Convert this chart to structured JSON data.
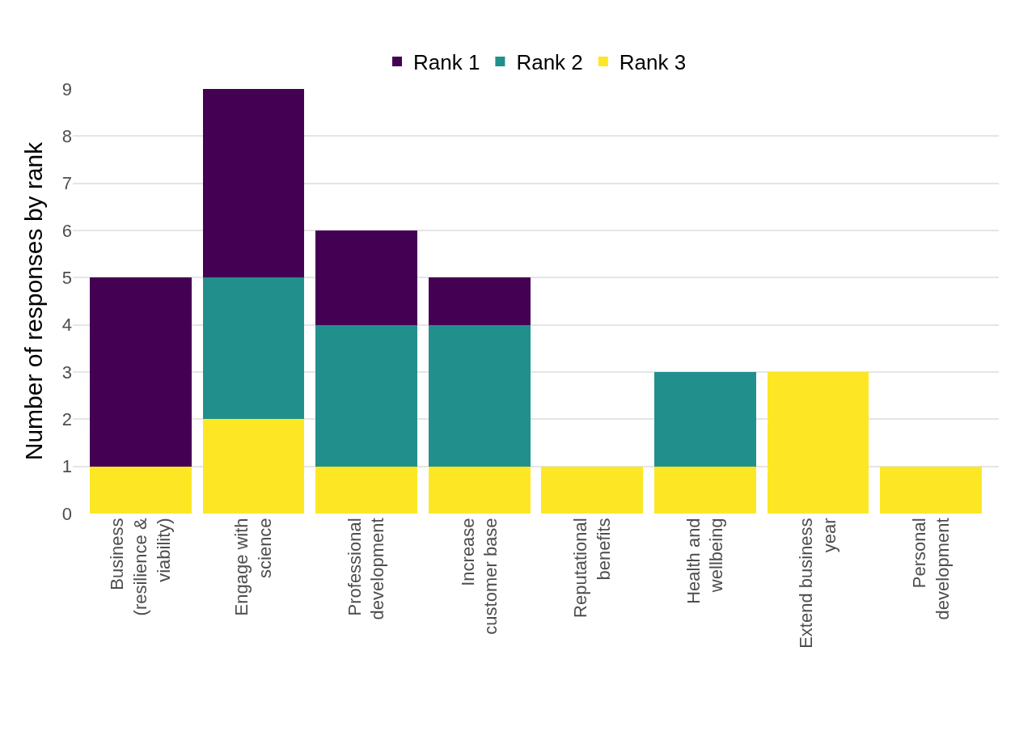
{
  "chart_data": {
    "type": "bar",
    "stacked": true,
    "ylabel": "Number of responses by rank",
    "categories": [
      "Business\n(resilience &\nviability)",
      "Engage with\nscience",
      "Professional\ndevelopment",
      "Increase\ncustomer base",
      "Reputational\nbenefits",
      "Health and\nwellbeing",
      "Extend business\nyear",
      "Personal\ndevelopment"
    ],
    "series": [
      {
        "name": "Rank 3",
        "color": "#fde725",
        "values": [
          1,
          2,
          1,
          1,
          1,
          1,
          3,
          1
        ]
      },
      {
        "name": "Rank 2",
        "color": "#21908c",
        "values": [
          null,
          3,
          3,
          3,
          null,
          2,
          null,
          null
        ]
      },
      {
        "name": "Rank 1",
        "color": "#440154",
        "values": [
          4,
          4,
          2,
          1,
          null,
          null,
          null,
          null
        ]
      }
    ],
    "ylim": [
      0,
      9
    ],
    "yticks": [
      0,
      1,
      2,
      3,
      4,
      5,
      6,
      7,
      8,
      9
    ],
    "grid": "y",
    "legend": "top"
  }
}
